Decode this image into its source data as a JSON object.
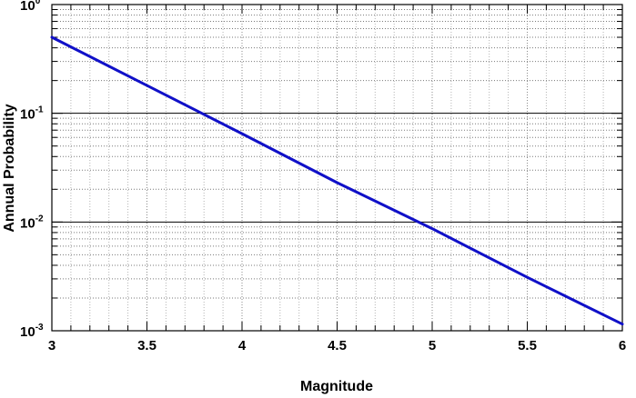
{
  "chart_data": {
    "type": "line",
    "title": "",
    "xlabel": "Magnitude",
    "ylabel": "Annual Probability",
    "xlim": [
      3,
      6
    ],
    "ylim": [
      0.001,
      1
    ],
    "yscale": "log",
    "grid": true,
    "x_ticks": [
      3,
      3.5,
      4,
      4.5,
      5,
      5.5,
      6
    ],
    "x_tick_labels": [
      "3",
      "3.5",
      "4",
      "4.5",
      "5",
      "5.5",
      "6"
    ],
    "y_ticks": [
      {
        "base": "10",
        "exp": "-3"
      },
      {
        "base": "10",
        "exp": "-2"
      },
      {
        "base": "10",
        "exp": "-1"
      },
      {
        "base": "10",
        "exp": "0"
      }
    ],
    "series": [
      {
        "color": "#1010c8",
        "x": [
          3,
          3.5,
          4,
          4.5,
          5,
          5.5,
          6
        ],
        "y": [
          0.5,
          0.18,
          0.065,
          0.023,
          0.0087,
          0.0031,
          0.00115
        ]
      }
    ]
  }
}
